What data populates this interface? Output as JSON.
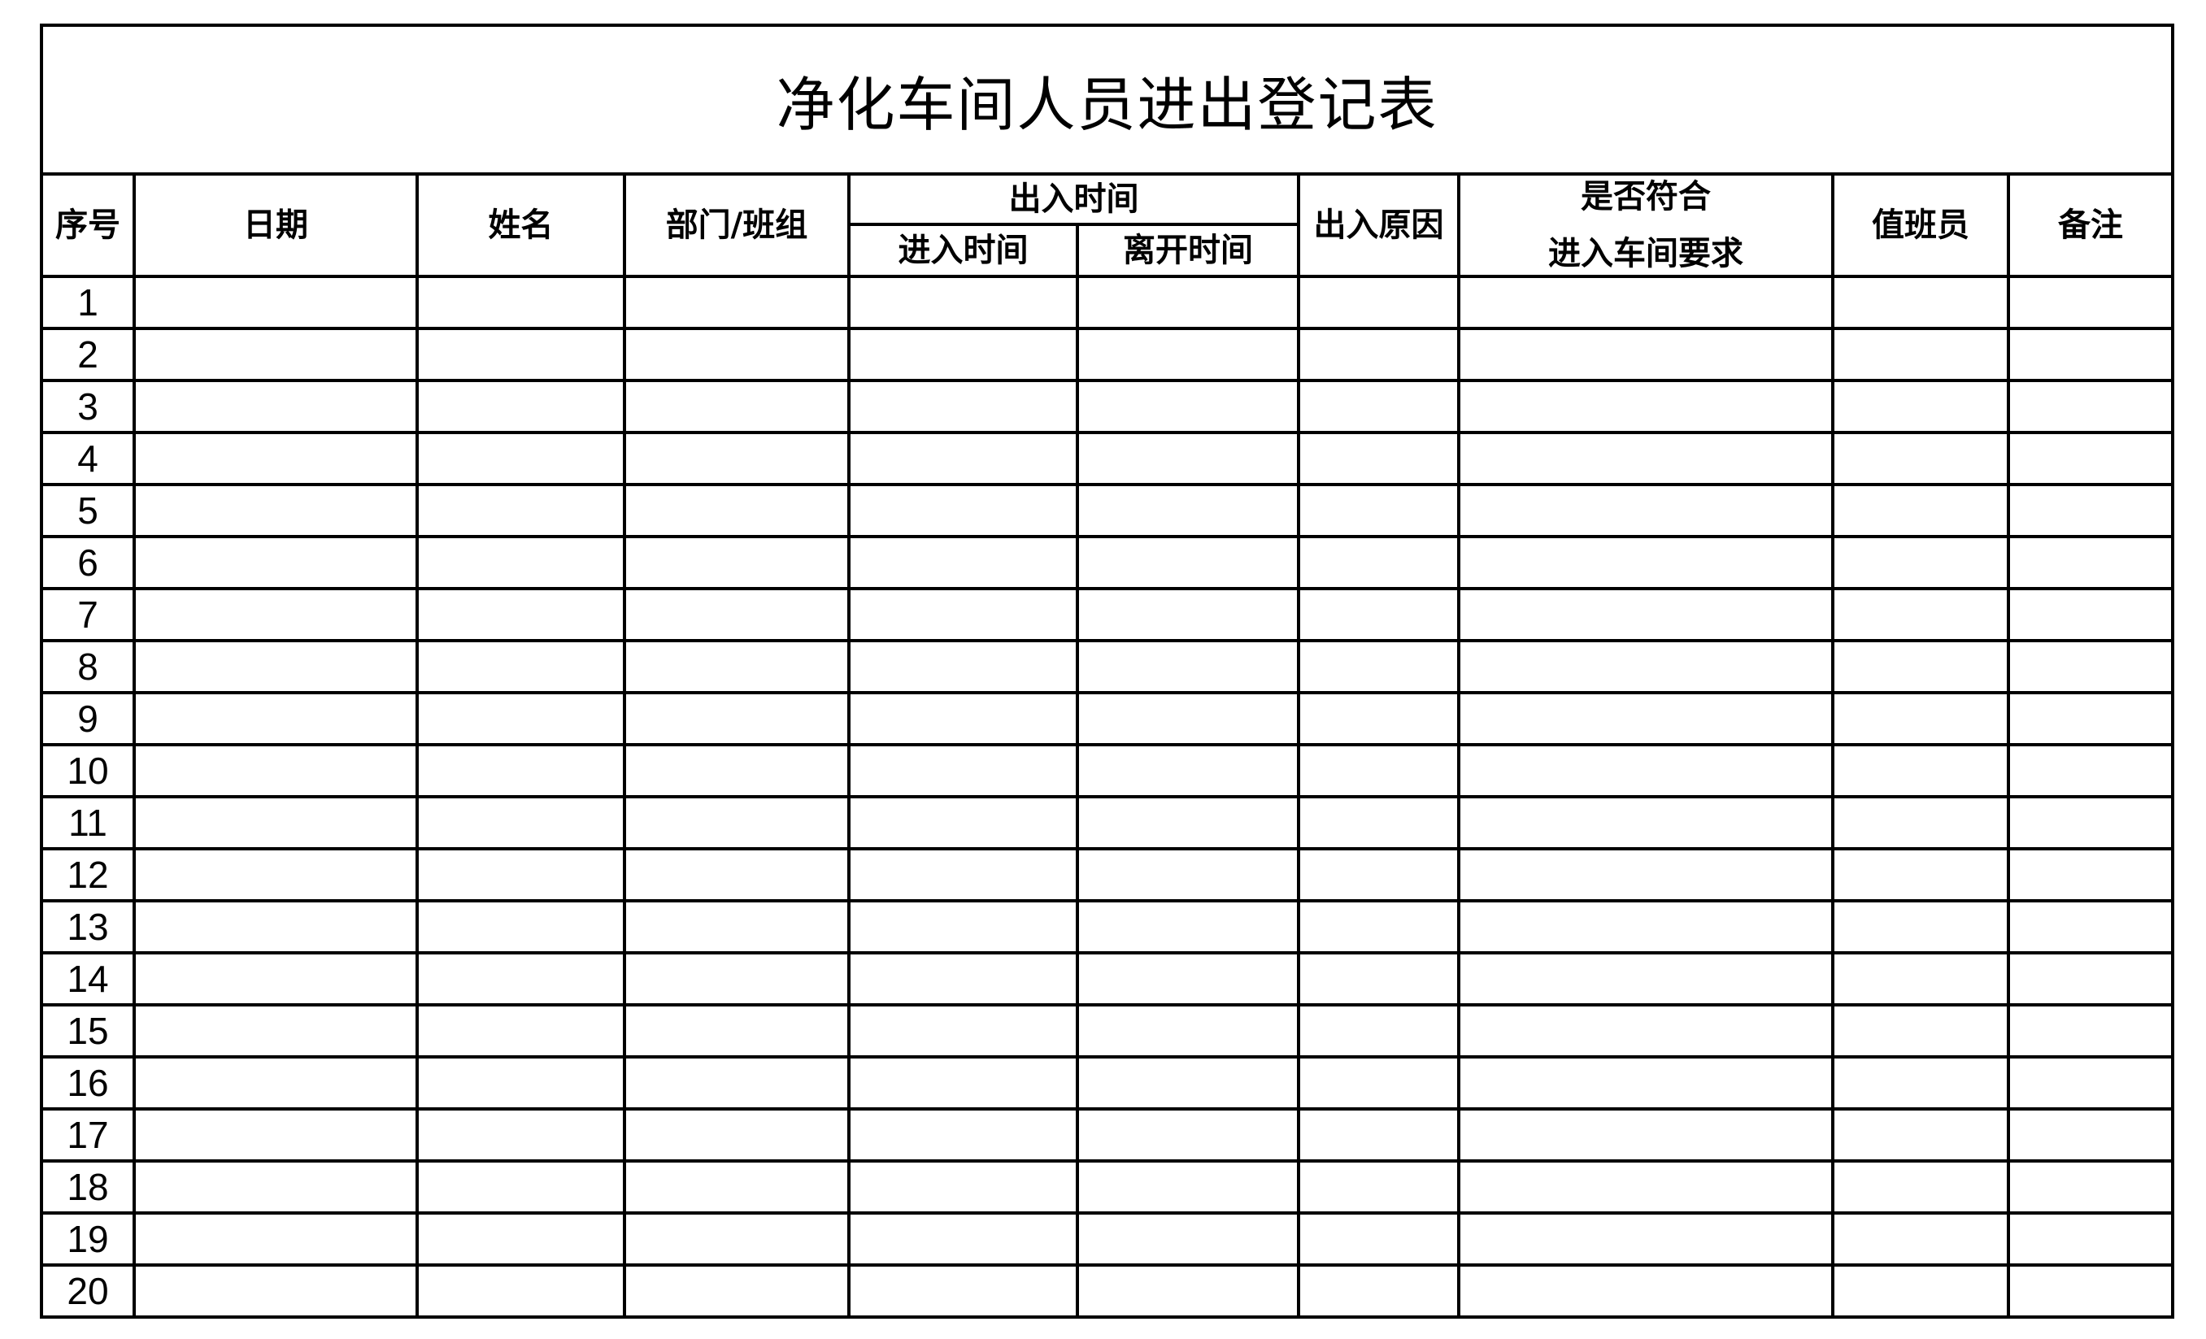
{
  "title": "净化车间人员进出登记表",
  "headers": {
    "seq": "序号",
    "date": "日期",
    "name": "姓名",
    "dept": "部门/班组",
    "inout_time": "出入时间",
    "enter_time": "进入时间",
    "leave_time": "离开时间",
    "reason": "出入原因",
    "compliance_line1": "是否符合",
    "compliance_line2": "进入车间要求",
    "duty": "值班员",
    "remark": "备注"
  },
  "rows": [
    "1",
    "2",
    "3",
    "4",
    "5",
    "6",
    "7",
    "8",
    "9",
    "10",
    "11",
    "12",
    "13",
    "14",
    "15",
    "16",
    "17",
    "18",
    "19",
    "20"
  ]
}
